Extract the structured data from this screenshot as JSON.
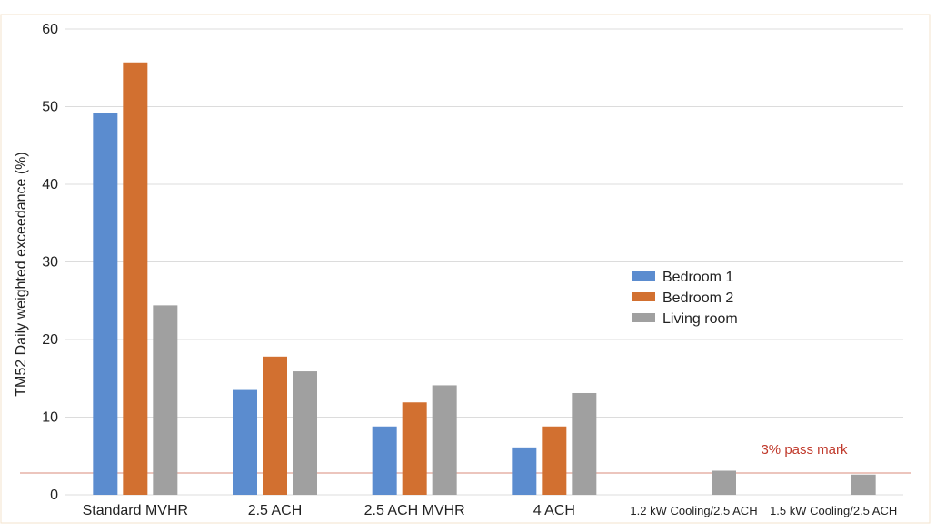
{
  "chart_data": {
    "type": "bar",
    "categories": [
      "Standard MVHR",
      "2.5 ACH",
      "2.5 ACH MVHR",
      "4 ACH",
      "1.2 kW Cooling/2.5 ACH",
      "1.5 kW Cooling/2.5 ACH"
    ],
    "series": [
      {
        "name": "Bedroom 1",
        "color": "#5b8ccf",
        "values": [
          49.2,
          13.5,
          8.8,
          6.1,
          null,
          null
        ]
      },
      {
        "name": "Bedroom 2",
        "color": "#d27030",
        "values": [
          55.7,
          17.8,
          11.9,
          8.8,
          null,
          null
        ]
      },
      {
        "name": "Living room",
        "color": "#a0a0a0",
        "values": [
          24.4,
          15.9,
          14.1,
          13.1,
          3.1,
          2.6
        ]
      }
    ],
    "title": "",
    "xlabel": "",
    "ylabel": "TM52 Daily weighted exceedance (%)",
    "ylim": [
      0,
      60
    ],
    "yticks": [
      0,
      10,
      20,
      30,
      40,
      50,
      60
    ],
    "grid": true,
    "legend_position": "right",
    "reference_line": {
      "value": 2.8,
      "label": "3% pass mark",
      "color": "#c0392b"
    }
  }
}
